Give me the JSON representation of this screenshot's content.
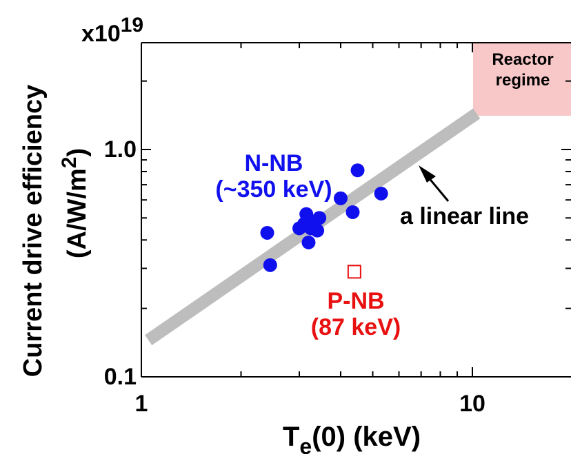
{
  "chart_data": {
    "type": "scatter",
    "x_scale": "log",
    "y_scale": "log",
    "xlim": [
      1,
      20
    ],
    "ylim": [
      0.1,
      2.0
    ],
    "grid": false,
    "multiplier_label": "x10",
    "multiplier_exponent": "19",
    "ylabel_line1": "Current drive efficiency",
    "ylabel_line2_main": "(A/W/m",
    "ylabel_line2_sup": "2",
    "ylabel_line2_end": ")",
    "xlabel_main": "T",
    "xlabel_sub": "e",
    "xlabel_end": "(0) (keV)",
    "x_ticks": [
      {
        "value": 1,
        "label": "1"
      },
      {
        "value": 10,
        "label": "10"
      }
    ],
    "y_ticks": [
      {
        "value": 0.1,
        "label": "0.1"
      },
      {
        "value": 1.0,
        "label": "1.0"
      }
    ],
    "series": [
      {
        "marker": "filled-circle",
        "color": "#1010ee",
        "points": [
          {
            "x": 2.4,
            "y": 0.43
          },
          {
            "x": 2.45,
            "y": 0.31
          },
          {
            "x": 3.0,
            "y": 0.45
          },
          {
            "x": 3.1,
            "y": 0.47
          },
          {
            "x": 3.15,
            "y": 0.52
          },
          {
            "x": 3.2,
            "y": 0.39
          },
          {
            "x": 3.25,
            "y": 0.45
          },
          {
            "x": 3.3,
            "y": 0.48
          },
          {
            "x": 3.4,
            "y": 0.44
          },
          {
            "x": 3.45,
            "y": 0.5
          },
          {
            "x": 4.0,
            "y": 0.61
          },
          {
            "x": 4.35,
            "y": 0.53
          },
          {
            "x": 4.5,
            "y": 0.81
          },
          {
            "x": 5.3,
            "y": 0.64
          }
        ]
      },
      {
        "marker": "open-square",
        "color": "#e81010",
        "points": [
          {
            "x": 4.4,
            "y": 0.29
          }
        ]
      }
    ],
    "trend_band": {
      "x1": 1.05,
      "y1": 0.145,
      "x2": 10.3,
      "y2": 1.44,
      "color": "#bdbdbd"
    },
    "annotations": {
      "nnb_line1": "N-NB",
      "nnb_line2": "(~350 keV)",
      "pnb_line1": "P-NB",
      "pnb_line2": "(87 keV)",
      "linear_line": "a linear line",
      "reactor_line1": "Reactor",
      "reactor_line2": "regime"
    },
    "colors": {
      "nnb": "#1010ee",
      "pnb": "#e81010",
      "band": "#bdbdbd",
      "reactor_box": "#f8c8c8",
      "axis": "#000000"
    }
  }
}
